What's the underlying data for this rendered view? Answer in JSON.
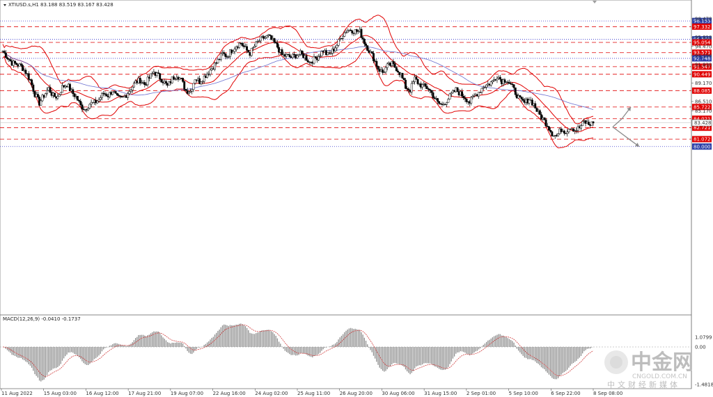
{
  "header": {
    "symbol_line": "XTIUSD.s,H1  83.188 83.519 83.167 83.428",
    "macd_label": "MACD(12,26,9) -0.0410 -0.1737"
  },
  "watermark": {
    "brand": "中金网",
    "site": "CNGOLD.COM.CN",
    "slogan": "中文财经新媒体"
  },
  "colors": {
    "candle": "#000000",
    "bollinger": "#e00000",
    "moving_average": "#6a6fd0",
    "support_level": "#e00000",
    "reference_level": "#3333cc",
    "current_price": "#000000",
    "macd_hist": "#8c8c8c",
    "macd_signal": "#d04040",
    "arrow": "#8c8c8c"
  },
  "chart_data": [
    {
      "type": "candlestick",
      "title": "XTIUSD.s,H1",
      "ylim": [
        78.6,
        99.2
      ],
      "y_ticks": [
        98.47,
        95.81,
        94.47,
        93.15,
        91.83,
        89.17,
        86.51,
        85.17
      ],
      "x_ticks": [
        "11 Aug 2022",
        "15 Aug 03:00",
        "16 Aug 12:00",
        "17 Aug 21:00",
        "19 Aug 07:00",
        "22 Aug 16:00",
        "24 Aug 02:00",
        "25 Aug 11:00",
        "26 Aug 20:00",
        "30 Aug 06:00",
        "31 Aug 15:00",
        "2 Sep 01:00",
        "5 Sep 10:00",
        "6 Sep 22:00",
        "8 Sep 08:00"
      ],
      "ohlc_latest": {
        "open": 83.188,
        "high": 83.519,
        "low": 83.167,
        "close": 83.428
      },
      "current_price": "83.428",
      "levels": [
        {
          "value": 98.153,
          "label": "98.153",
          "kind": "reference"
        },
        {
          "value": 97.332,
          "label": "97.332",
          "kind": "support"
        },
        {
          "value": 95.5,
          "label": "95.500",
          "kind": "reference"
        },
        {
          "value": 95.054,
          "label": "95.054",
          "kind": "support"
        },
        {
          "value": 93.571,
          "label": "93.571",
          "kind": "support"
        },
        {
          "value": 92.748,
          "label": "92.748",
          "kind": "reference"
        },
        {
          "value": 91.547,
          "label": "91.547",
          "kind": "support"
        },
        {
          "value": 90.449,
          "label": "90.449",
          "kind": "support"
        },
        {
          "value": 88.085,
          "label": "88.085",
          "kind": "support"
        },
        {
          "value": 85.722,
          "label": "85.722",
          "kind": "support"
        },
        {
          "value": 84.021,
          "label": "84.021",
          "kind": "support"
        },
        {
          "value": 82.721,
          "label": "82.721",
          "kind": "support"
        },
        {
          "value": 81.072,
          "label": "81.072",
          "kind": "support"
        },
        {
          "value": 80.0,
          "label": "80.000",
          "kind": "reference"
        }
      ],
      "close_path": [
        93.8,
        92.9,
        92.1,
        91.9,
        91.6,
        90.8,
        89.6,
        87.6,
        86.3,
        87.4,
        88.4,
        87.3,
        87.2,
        88.6,
        89.0,
        87.9,
        87.2,
        85.9,
        85.4,
        86.2,
        86.3,
        86.8,
        87.7,
        87.4,
        88.1,
        87.0,
        86.9,
        87.5,
        88.4,
        89.3,
        89.6,
        89.0,
        89.9,
        90.8,
        90.2,
        89.5,
        88.7,
        89.8,
        90.4,
        89.6,
        88.1,
        88.0,
        89.9,
        89.4,
        90.1,
        90.8,
        91.6,
        92.4,
        93.4,
        93.1,
        93.9,
        94.6,
        95.0,
        94.1,
        93.5,
        94.5,
        95.3,
        95.7,
        95.9,
        95.2,
        94.4,
        93.2,
        93.1,
        92.9,
        93.2,
        93.4,
        93.0,
        92.2,
        92.6,
        93.1,
        93.9,
        93.2,
        93.8,
        94.7,
        96.0,
        96.7,
        96.9,
        96.7,
        96.6,
        95.1,
        93.9,
        92.8,
        91.3,
        90.7,
        91.6,
        91.9,
        91.3,
        90.4,
        88.6,
        88.2,
        89.8,
        89.0,
        88.7,
        88.4,
        87.4,
        86.3,
        86.0,
        86.7,
        87.5,
        88.2,
        87.6,
        87.1,
        86.4,
        87.3,
        87.9,
        88.7,
        89.0,
        89.4,
        90.3,
        89.5,
        89.7,
        88.9,
        87.8,
        86.7,
        86.3,
        86.9,
        86.1,
        84.8,
        84.0,
        83.1,
        81.9,
        81.5,
        82.5,
        82.2,
        82.9,
        82.4,
        82.7,
        83.6,
        83.2,
        83.4
      ],
      "indicators": [
        "Bollinger Bands",
        "Moving Average",
        "Forecast arrows"
      ]
    },
    {
      "type": "bar",
      "title": "MACD(12,26,9)",
      "ylim": [
        -1.4818,
        1.0799
      ],
      "y_ticks": [
        1.0799,
        0.0,
        -1.4818
      ],
      "y_tick_labels": [
        "1.0799",
        "0.00",
        "-1.4818"
      ],
      "latest": {
        "macd": -0.041,
        "signal": -0.1737
      }
    }
  ]
}
